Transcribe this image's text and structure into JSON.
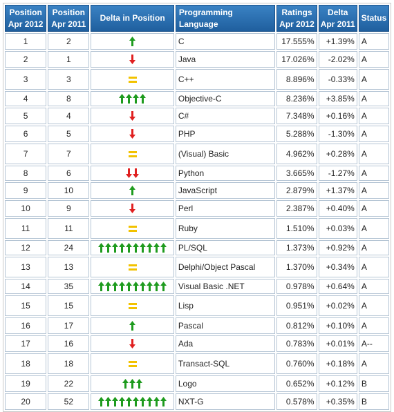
{
  "headers": {
    "pos2012": [
      "Position",
      "Apr 2012"
    ],
    "pos2011": [
      "Position",
      "Apr 2011"
    ],
    "delta_position": "Delta in Position",
    "language": "Programming Language",
    "ratings": [
      "Ratings",
      "Apr 2012"
    ],
    "delta": [
      "Delta",
      "Apr 2011"
    ],
    "status": "Status"
  },
  "colors": {
    "up": "#1e9b1e",
    "down": "#e02020",
    "same": "#f2c200",
    "header": "#2a6fb0",
    "link": "#1c2f8a"
  },
  "icons": {
    "up": "green-up-arrow-icon",
    "down": "red-down-arrow-icon",
    "same": "yellow-equals-icon"
  },
  "rows": [
    {
      "pos2012": "1",
      "pos2011": "2",
      "trend": "up",
      "count": 1,
      "language": "C",
      "rating": "17.555%",
      "delta": "+1.39%",
      "status": "A"
    },
    {
      "pos2012": "2",
      "pos2011": "1",
      "trend": "down",
      "count": 1,
      "language": "Java",
      "rating": "17.026%",
      "delta": "-2.02%",
      "status": "A"
    },
    {
      "pos2012": "3",
      "pos2011": "3",
      "trend": "same",
      "count": 1,
      "language": "C++",
      "rating": "8.896%",
      "delta": "-0.33%",
      "status": "A"
    },
    {
      "pos2012": "4",
      "pos2011": "8",
      "trend": "up",
      "count": 4,
      "language": "Objective-C",
      "rating": "8.236%",
      "delta": "+3.85%",
      "status": "A"
    },
    {
      "pos2012": "5",
      "pos2011": "4",
      "trend": "down",
      "count": 1,
      "language": "C#",
      "rating": "7.348%",
      "delta": "+0.16%",
      "status": "A"
    },
    {
      "pos2012": "6",
      "pos2011": "5",
      "trend": "down",
      "count": 1,
      "language": "PHP",
      "rating": "5.288%",
      "delta": "-1.30%",
      "status": "A"
    },
    {
      "pos2012": "7",
      "pos2011": "7",
      "trend": "same",
      "count": 1,
      "language": "(Visual) Basic",
      "rating": "4.962%",
      "delta": "+0.28%",
      "status": "A"
    },
    {
      "pos2012": "8",
      "pos2011": "6",
      "trend": "down",
      "count": 2,
      "language": "Python",
      "rating": "3.665%",
      "delta": "-1.27%",
      "status": "A"
    },
    {
      "pos2012": "9",
      "pos2011": "10",
      "trend": "up",
      "count": 1,
      "language": "JavaScript",
      "rating": "2.879%",
      "delta": "+1.37%",
      "status": "A"
    },
    {
      "pos2012": "10",
      "pos2011": "9",
      "trend": "down",
      "count": 1,
      "language": "Perl",
      "rating": "2.387%",
      "delta": "+0.40%",
      "status": "A"
    },
    {
      "pos2012": "11",
      "pos2011": "11",
      "trend": "same",
      "count": 1,
      "language": "Ruby",
      "rating": "1.510%",
      "delta": "+0.03%",
      "status": "A"
    },
    {
      "pos2012": "12",
      "pos2011": "24",
      "trend": "up",
      "count": 10,
      "language": "PL/SQL",
      "rating": "1.373%",
      "delta": "+0.92%",
      "status": "A"
    },
    {
      "pos2012": "13",
      "pos2011": "13",
      "trend": "same",
      "count": 1,
      "language": "Delphi/Object Pascal",
      "rating": "1.370%",
      "delta": "+0.34%",
      "status": "A"
    },
    {
      "pos2012": "14",
      "pos2011": "35",
      "trend": "up",
      "count": 10,
      "language": "Visual Basic .NET",
      "rating": "0.978%",
      "delta": "+0.64%",
      "status": "A"
    },
    {
      "pos2012": "15",
      "pos2011": "15",
      "trend": "same",
      "count": 1,
      "language": "Lisp",
      "rating": "0.951%",
      "delta": "+0.02%",
      "status": "A"
    },
    {
      "pos2012": "16",
      "pos2011": "17",
      "trend": "up",
      "count": 1,
      "language": "Pascal",
      "rating": "0.812%",
      "delta": "+0.10%",
      "status": "A"
    },
    {
      "pos2012": "17",
      "pos2011": "16",
      "trend": "down",
      "count": 1,
      "language": "Ada",
      "rating": "0.783%",
      "delta": "+0.01%",
      "status": "A--"
    },
    {
      "pos2012": "18",
      "pos2011": "18",
      "trend": "same",
      "count": 1,
      "language": "Transact-SQL",
      "rating": "0.760%",
      "delta": "+0.18%",
      "status": "A"
    },
    {
      "pos2012": "19",
      "pos2011": "22",
      "trend": "up",
      "count": 3,
      "language": "Logo",
      "rating": "0.652%",
      "delta": "+0.12%",
      "status": "B"
    },
    {
      "pos2012": "20",
      "pos2011": "52",
      "trend": "up",
      "count": 10,
      "language": "NXT-G",
      "rating": "0.578%",
      "delta": "+0.35%",
      "status": "B"
    }
  ]
}
